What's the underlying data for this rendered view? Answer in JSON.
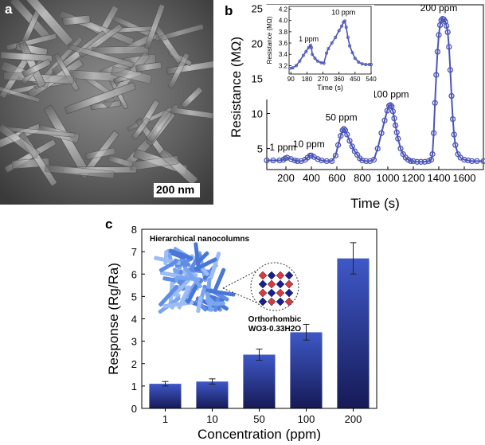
{
  "panels": {
    "a": {
      "letter": "a",
      "scale_bar_label": "200 nm"
    },
    "b": {
      "letter": "b"
    },
    "c": {
      "letter": "c"
    }
  },
  "colors": {
    "series": "#4b55b8",
    "bar_top": "#3f58c8",
    "bar_bottom": "#161a55",
    "axis": "#000000"
  },
  "chart_data": [
    {
      "type": "line",
      "panel": "b",
      "xlabel": "Time (s)",
      "ylabel": "Resistance (MΩ)",
      "xlim": [
        50,
        1750
      ],
      "ylim": [
        2,
        25.5
      ],
      "xticks": [
        200,
        400,
        600,
        800,
        1000,
        1200,
        1400,
        1600
      ],
      "yticks": [
        5,
        10,
        15,
        20,
        25
      ],
      "annotations": [
        {
          "text": "1 ppm",
          "x": 175,
          "y": 4.7
        },
        {
          "text": "10 ppm",
          "x": 380,
          "y": 5.2
        },
        {
          "text": "50 ppm",
          "x": 635,
          "y": 9.0
        },
        {
          "text": "100 ppm",
          "x": 1020,
          "y": 12.3
        },
        {
          "text": "200 ppm",
          "x": 1400,
          "y": 24.6
        }
      ],
      "series": [
        {
          "x": [
            50,
            100,
            150,
            180,
            195,
            210,
            240,
            270,
            290,
            320,
            350,
            370,
            390,
            400,
            420,
            450,
            480,
            520,
            560,
            590,
            610,
            630,
            645,
            655,
            665,
            680,
            700,
            720,
            740,
            760,
            780,
            800,
            830,
            860,
            890,
            920,
            950,
            975,
            995,
            1010,
            1020,
            1030,
            1040,
            1050,
            1060,
            1070,
            1080,
            1100,
            1120,
            1140,
            1160,
            1180,
            1200,
            1230,
            1260,
            1290,
            1320,
            1340,
            1350,
            1360,
            1370,
            1380,
            1390,
            1400,
            1410,
            1420,
            1430,
            1440,
            1450,
            1460,
            1470,
            1480,
            1490,
            1500,
            1510,
            1520,
            1530,
            1550,
            1570,
            1600,
            1630,
            1660,
            1700,
            1750
          ],
          "y": [
            3.3,
            3.3,
            3.3,
            3.4,
            3.6,
            3.7,
            3.5,
            3.3,
            3.2,
            3.2,
            3.4,
            3.7,
            4.0,
            4.0,
            3.8,
            3.5,
            3.3,
            3.2,
            3.2,
            4.0,
            5.5,
            6.8,
            7.6,
            7.8,
            7.6,
            7.0,
            6.1,
            5.3,
            4.6,
            4.1,
            3.6,
            3.3,
            3.2,
            3.2,
            3.4,
            5.0,
            7.2,
            9.0,
            10.4,
            11.1,
            11.2,
            11.0,
            10.3,
            9.3,
            8.3,
            7.3,
            6.4,
            5.0,
            4.2,
            3.7,
            3.4,
            3.2,
            3.2,
            3.1,
            3.1,
            3.1,
            3.2,
            3.4,
            4.2,
            7.2,
            11.5,
            15.5,
            18.8,
            21.2,
            22.6,
            23.3,
            23.5,
            23.4,
            23.1,
            22.5,
            21.6,
            19.5,
            16.2,
            12.5,
            9.2,
            7.0,
            5.5,
            4.2,
            3.7,
            3.4,
            3.3,
            3.2,
            3.2,
            3.2
          ]
        }
      ]
    },
    {
      "type": "line",
      "panel": "b-inset",
      "xlabel": "Time (s)",
      "ylabel": "Resistance (MΩ)",
      "xlim": [
        80,
        540
      ],
      "ylim": [
        3.05,
        4.25
      ],
      "xticks": [
        90,
        180,
        270,
        360,
        450,
        540
      ],
      "yticks": [
        3.2,
        3.4,
        3.6,
        3.8,
        4.0,
        4.2
      ],
      "annotations": [
        {
          "text": "1 ppm",
          "x": 190,
          "y": 3.63
        },
        {
          "text": "10 ppm",
          "x": 385,
          "y": 4.1
        }
      ],
      "series": [
        {
          "x": [
            85,
            100,
            120,
            140,
            160,
            175,
            190,
            200,
            205,
            210,
            225,
            240,
            260,
            275,
            290,
            300,
            320,
            340,
            360,
            375,
            385,
            392,
            400,
            410,
            420,
            435,
            450,
            470,
            490,
            510,
            530,
            540
          ],
          "y": [
            3.15,
            3.16,
            3.2,
            3.28,
            3.38,
            3.45,
            3.52,
            3.56,
            3.52,
            3.4,
            3.33,
            3.28,
            3.25,
            3.24,
            3.42,
            3.5,
            3.6,
            3.7,
            3.82,
            3.9,
            3.97,
            3.99,
            3.88,
            3.7,
            3.55,
            3.43,
            3.33,
            3.26,
            3.23,
            3.22,
            3.22,
            3.22
          ]
        }
      ]
    },
    {
      "type": "bar",
      "panel": "c",
      "xlabel": "Concentration (ppm)",
      "ylabel": "Response (Rg/Ra)",
      "categories": [
        "1",
        "10",
        "50",
        "100",
        "200"
      ],
      "values": [
        1.1,
        1.2,
        2.4,
        3.4,
        6.7
      ],
      "errors": [
        0.1,
        0.12,
        0.25,
        0.35,
        0.7
      ],
      "ylim": [
        0,
        8
      ],
      "yticks": [
        0,
        1,
        2,
        3,
        4,
        5,
        6,
        7,
        8
      ],
      "annotations": [
        "Hierarchical nanocolumns",
        "Orthorhombic",
        "WO3·0.33H2O"
      ]
    }
  ]
}
